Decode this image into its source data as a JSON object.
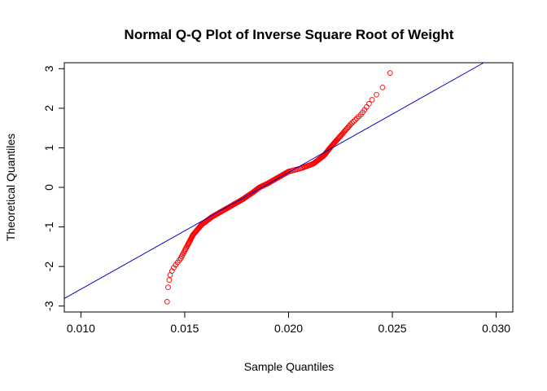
{
  "chart_data": {
    "type": "scatter",
    "title": "Normal Q-Q Plot of Inverse Square Root of Weight",
    "xlabel": "Sample Quantiles",
    "ylabel": "Theoretical Quantiles",
    "xlim": [
      0.0092,
      0.0308
    ],
    "ylim": [
      -3.15,
      3.15
    ],
    "x_ticks": [
      0.01,
      0.015,
      0.02,
      0.025,
      0.03
    ],
    "x_tick_labels": [
      "0.010",
      "0.015",
      "0.020",
      "0.025",
      "0.030"
    ],
    "y_ticks": [
      -3,
      -2,
      -1,
      0,
      1,
      2,
      3
    ],
    "y_tick_labels": [
      "-3",
      "-2",
      "-1",
      "0",
      "1",
      "2",
      "3"
    ],
    "grid": false,
    "point_color": "#ff0000",
    "line_color": "#0000cc",
    "reference_line": {
      "x": [
        0.0092,
        0.0294
      ],
      "y": [
        -2.81,
        3.15
      ]
    },
    "curve_points": {
      "x": [
        0.01415,
        0.0142,
        0.0143,
        0.0145,
        0.0148,
        0.0151,
        0.0154,
        0.0158,
        0.0163,
        0.0168,
        0.0173,
        0.0178,
        0.0183,
        0.0186,
        0.019,
        0.0195,
        0.02,
        0.0206,
        0.0212,
        0.0217,
        0.022,
        0.0225,
        0.023,
        0.0235,
        0.024,
        0.0245,
        0.0249
      ],
      "y": [
        -2.9,
        -2.5,
        -2.2,
        -2.0,
        -1.8,
        -1.5,
        -1.2,
        -0.95,
        -0.75,
        -0.6,
        -0.45,
        -0.3,
        -0.12,
        0.0,
        0.1,
        0.25,
        0.4,
        0.48,
        0.6,
        0.8,
        1.0,
        1.3,
        1.6,
        1.85,
        2.2,
        2.5,
        2.9
      ]
    },
    "n_points": 260
  }
}
